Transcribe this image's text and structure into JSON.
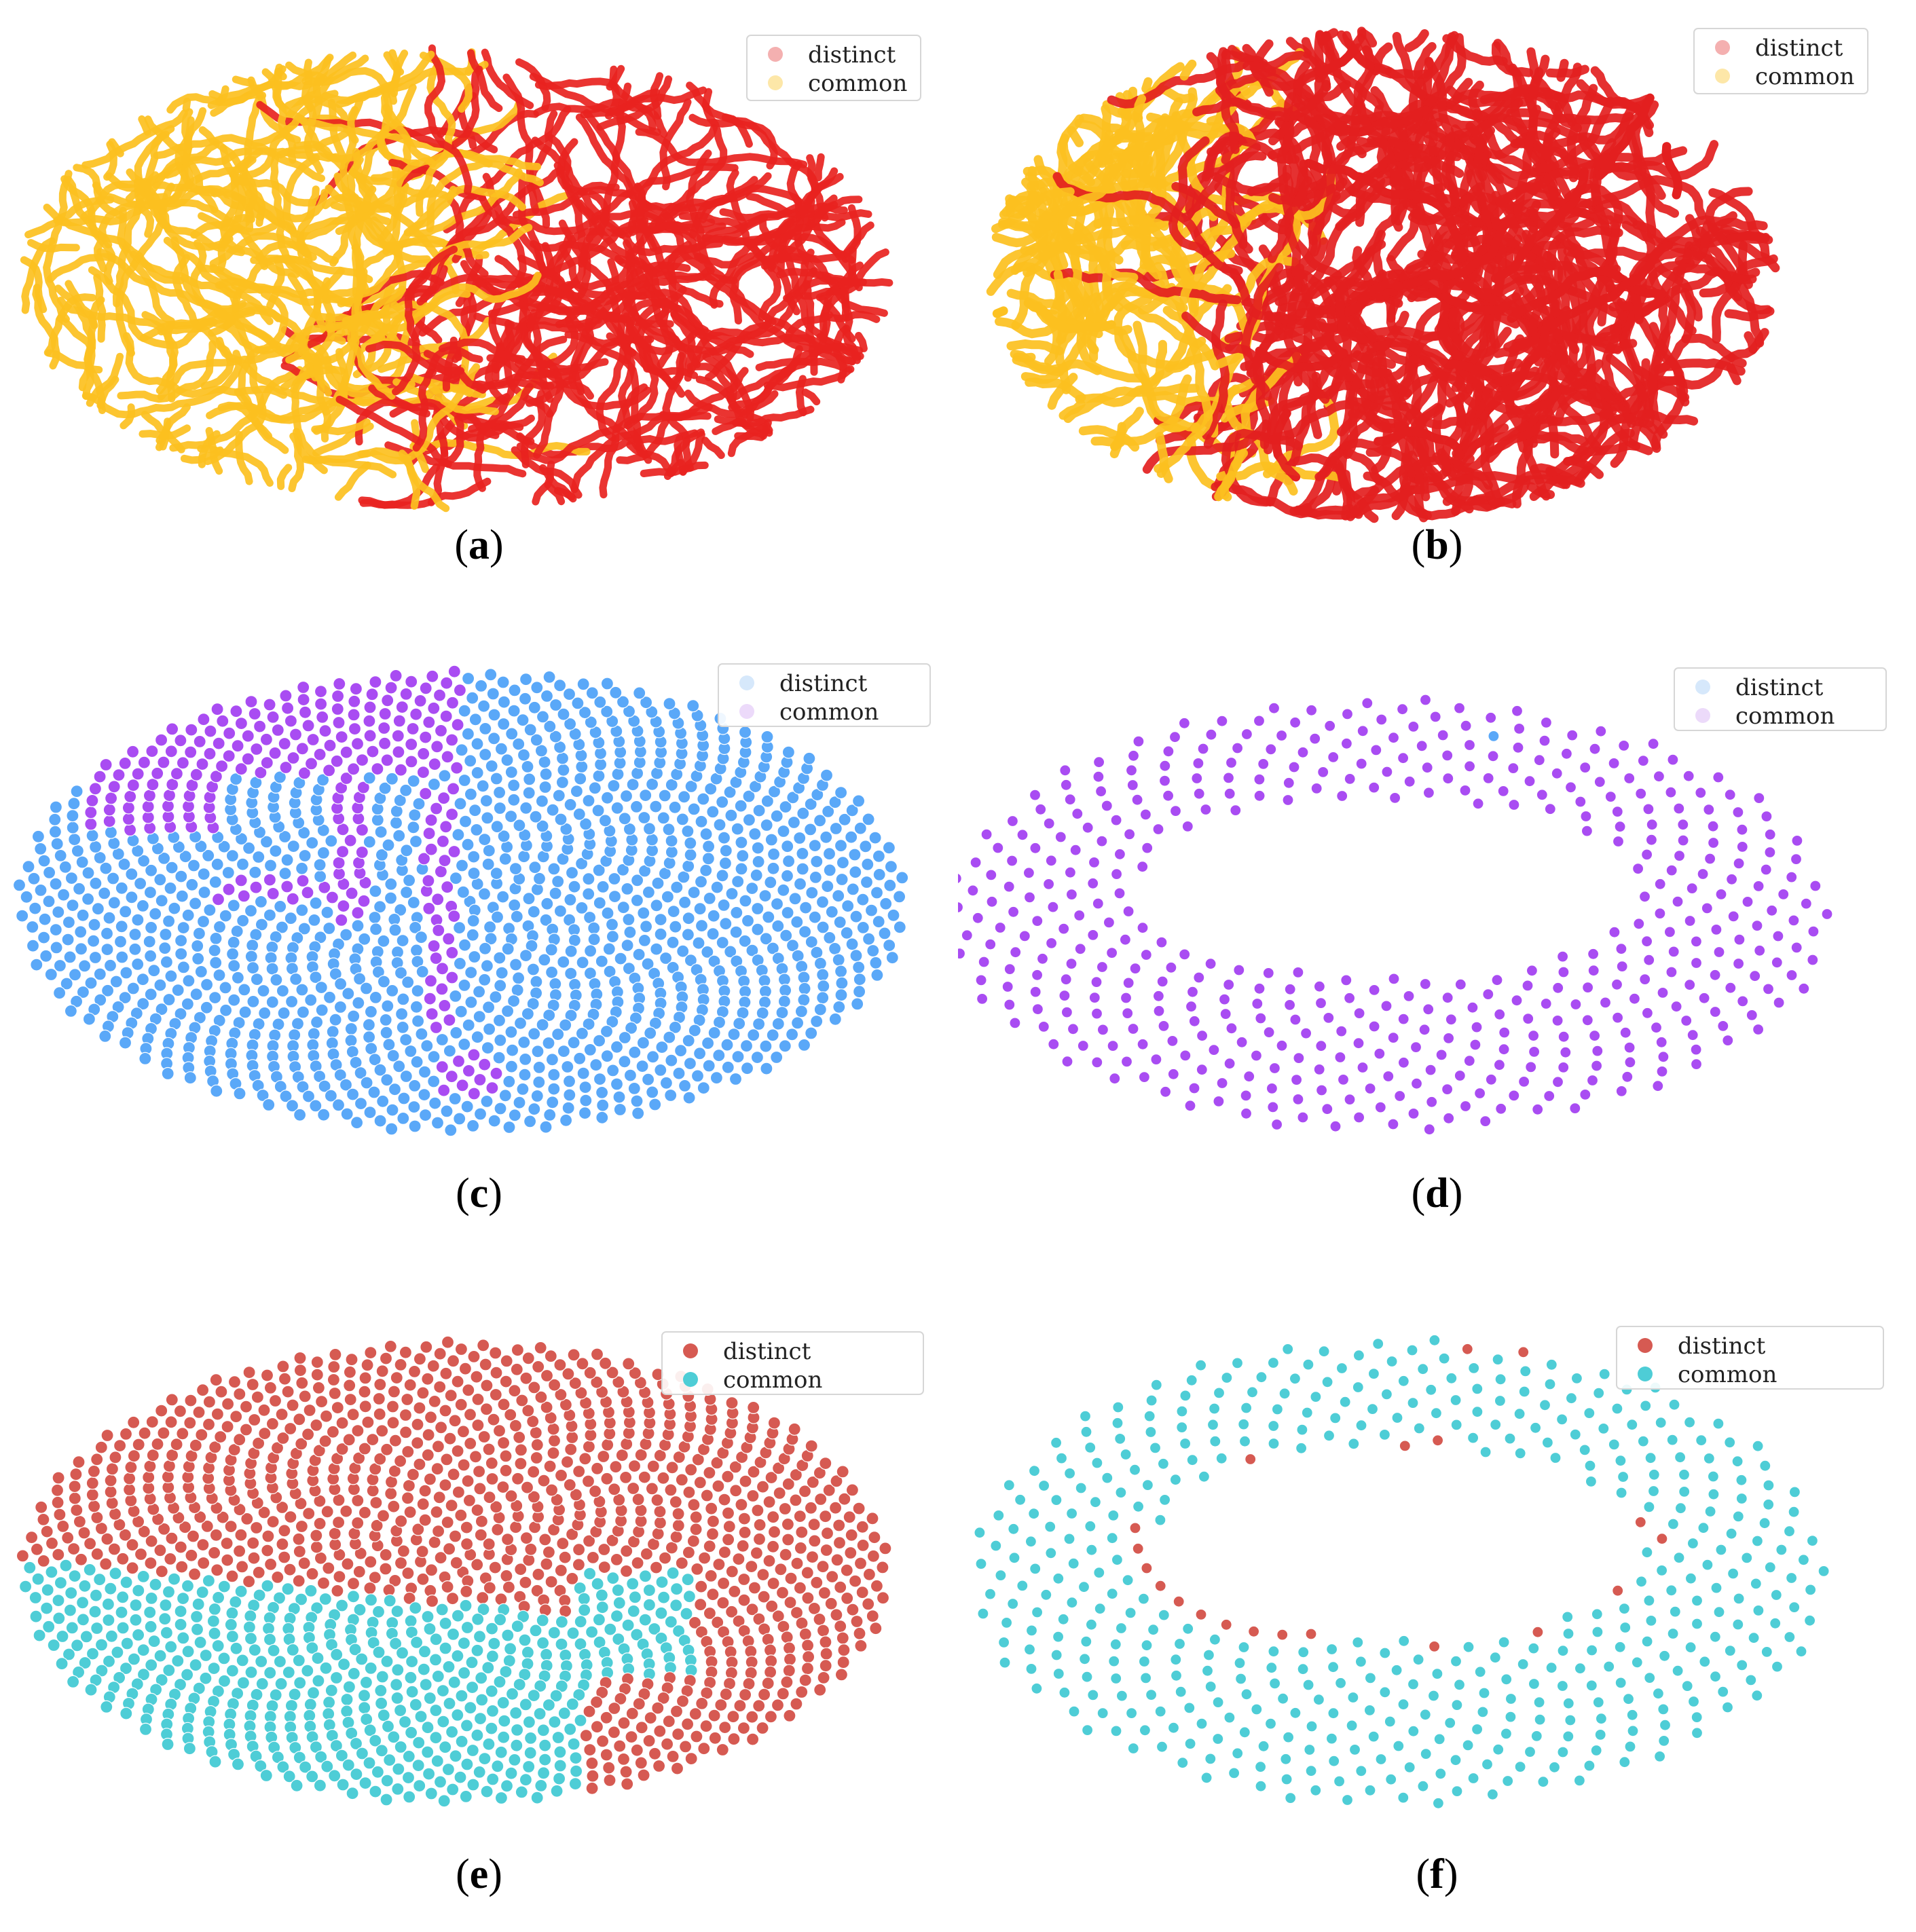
{
  "figure": {
    "panels": [
      {
        "id": "a",
        "caption_letter": "a",
        "legend": {
          "labels": [
            "distinct",
            "common"
          ]
        }
      },
      {
        "id": "b",
        "caption_letter": "b",
        "legend": {
          "labels": [
            "distinct",
            "common"
          ]
        }
      },
      {
        "id": "c",
        "caption_letter": "c",
        "legend": {
          "labels": [
            "distinct",
            "common"
          ]
        }
      },
      {
        "id": "d",
        "caption_letter": "d",
        "legend": {
          "labels": [
            "distinct",
            "common"
          ]
        }
      },
      {
        "id": "e",
        "caption_letter": "e",
        "legend": {
          "labels": [
            "distinct",
            "common"
          ]
        }
      },
      {
        "id": "f",
        "caption_letter": "f",
        "legend": {
          "labels": [
            "distinct",
            "common"
          ]
        }
      }
    ]
  },
  "chart_data": [
    {
      "panel": "a",
      "type": "scatter",
      "title": "",
      "xlabel": "",
      "ylabel": "",
      "style": "worm",
      "legend_position": "top-right",
      "grid": false,
      "axes": "hidden",
      "series": [
        {
          "name": "distinct",
          "color": "#e8231f",
          "legend_color": "#f4b0b0",
          "region": "right half of ellipse (x > -0.05)",
          "approx_fraction": 0.5
        },
        {
          "name": "common",
          "color": "#fcc020",
          "legend_color": "#fde7a8",
          "region": "left half of ellipse (x < -0.05)",
          "approx_fraction": 0.5
        }
      ]
    },
    {
      "panel": "b",
      "type": "scatter",
      "title": "",
      "xlabel": "",
      "ylabel": "",
      "style": "worm",
      "legend_position": "top-right",
      "grid": false,
      "axes": "hidden",
      "series": [
        {
          "name": "distinct",
          "color": "#e32020",
          "legend_color": "#f4b0b0",
          "region": "dominant; everything except left wedge",
          "approx_fraction": 0.8
        },
        {
          "name": "common",
          "color": "#fcc020",
          "legend_color": "#fde7a8",
          "region": "left wedge (x < -0.45)",
          "approx_fraction": 0.2
        }
      ]
    },
    {
      "panel": "c",
      "type": "scatter",
      "title": "",
      "xlabel": "",
      "ylabel": "",
      "style": "phyllotaxis-filled",
      "legend_position": "top-right",
      "grid": false,
      "axes": "hidden",
      "series": [
        {
          "name": "distinct",
          "color": "#5aa8f8",
          "legend_color": "#d6e8fb",
          "region": "most of ellipse",
          "approx_fraction": 0.88
        },
        {
          "name": "common",
          "color": "#a94cf2",
          "legend_color": "#ecdafa",
          "region": "top-left border cluster, branching strand, bottom-center clump",
          "approx_fraction": 0.12
        }
      ]
    },
    {
      "panel": "d",
      "type": "scatter",
      "title": "",
      "xlabel": "",
      "ylabel": "",
      "style": "phyllotaxis-ring",
      "legend_position": "top-right",
      "grid": false,
      "axes": "hidden",
      "series": [
        {
          "name": "distinct",
          "color": "#5aa8f8",
          "legend_color": "#d6e8fb",
          "region": "three points near top-right",
          "approx_fraction": 0.01
        },
        {
          "name": "common",
          "color": "#a94cf2",
          "legend_color": "#ecdafa",
          "region": "sparse ring with empty upper-center hole",
          "approx_fraction": 0.99
        }
      ]
    },
    {
      "panel": "e",
      "type": "scatter",
      "title": "",
      "xlabel": "",
      "ylabel": "",
      "style": "phyllotaxis-filled",
      "legend_position": "top-right",
      "grid": false,
      "axes": "hidden",
      "series": [
        {
          "name": "distinct",
          "color": "#d65a52",
          "legend_color": "#d65a52",
          "region": "upper part and lower-right",
          "approx_fraction": 0.62
        },
        {
          "name": "common",
          "color": "#4ecdd6",
          "legend_color": "#4ecdd6",
          "region": "lower-left band plus lobe at right",
          "approx_fraction": 0.38
        }
      ]
    },
    {
      "panel": "f",
      "type": "scatter",
      "title": "",
      "xlabel": "",
      "ylabel": "",
      "style": "phyllotaxis-ring",
      "legend_position": "top-right",
      "grid": false,
      "axes": "hidden",
      "series": [
        {
          "name": "distinct",
          "color": "#d65a52",
          "legend_color": "#d65a52",
          "region": "scattered points along inner hole edge",
          "approx_fraction": 0.03
        },
        {
          "name": "common",
          "color": "#4ecdd6",
          "legend_color": "#4ecdd6",
          "region": "ring with central hole",
          "approx_fraction": 0.97
        }
      ]
    }
  ]
}
